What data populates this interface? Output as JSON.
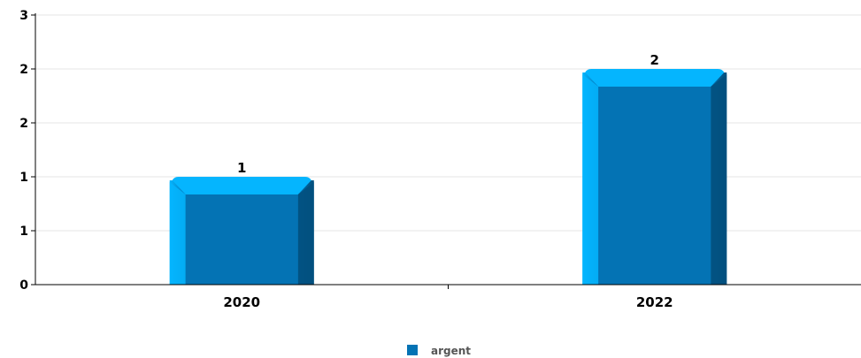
{
  "chart_data": {
    "type": "bar",
    "categories": [
      "2020",
      "2022"
    ],
    "series": [
      {
        "name": "argent",
        "values": [
          1,
          2
        ]
      }
    ],
    "y_tick_labels": [
      "0",
      "1",
      "1",
      "2",
      "2",
      "3"
    ],
    "ylim": [
      0,
      2.5
    ],
    "grid": true,
    "legend_position": "bottom-center",
    "colors": {
      "bar_body": "#0473b4",
      "bar_light": "#05b5fe",
      "bar_dark": "#02507e",
      "legend_swatch": "#0473b4",
      "grid": "#e6e6e6",
      "axis": "#000000"
    }
  }
}
